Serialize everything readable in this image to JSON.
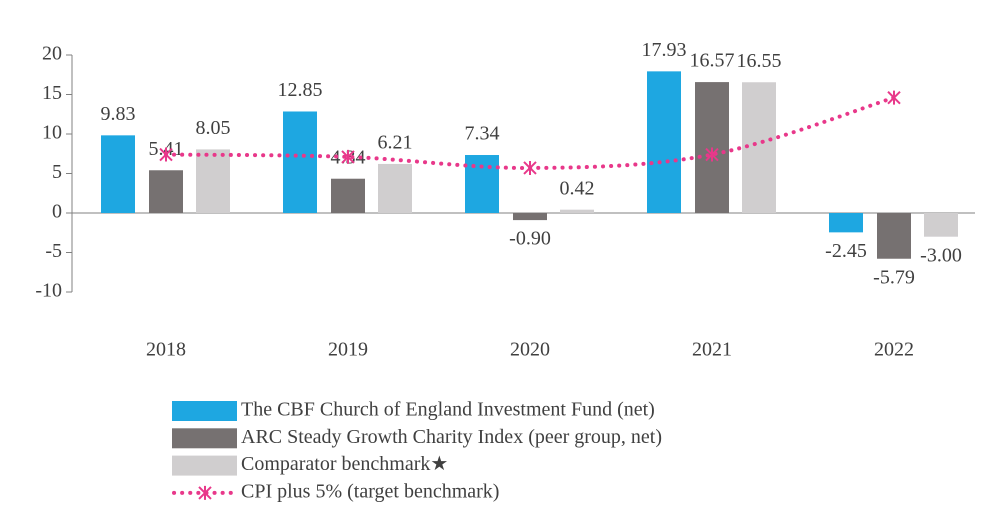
{
  "chart_data": {
    "type": "bar",
    "categories": [
      "2018",
      "2019",
      "2020",
      "2021",
      "2022"
    ],
    "ylim": [
      -10,
      20
    ],
    "yticks": [
      -10,
      -5,
      0,
      5,
      10,
      15,
      20
    ],
    "series": [
      {
        "name": "The CBF Church of England Investment Fund (net)",
        "color": "#1ea7e1",
        "values": [
          9.83,
          12.85,
          7.34,
          17.93,
          -2.45
        ],
        "value_labels": [
          "9.83",
          "12.85",
          "7.34",
          "17.93",
          "-2.45"
        ]
      },
      {
        "name": "ARC Steady Growth Charity Index (peer group, net)",
        "color": "#767171",
        "values": [
          5.41,
          4.34,
          -0.9,
          16.57,
          -5.79
        ],
        "value_labels": [
          "5.41",
          "4.34",
          "-0.90",
          "16.57",
          "-5.79"
        ]
      },
      {
        "name": "Comparator benchmark★",
        "color": "#d0cecf",
        "values": [
          8.05,
          6.21,
          0.42,
          16.55,
          -3.0
        ],
        "value_labels": [
          "8.05",
          "6.21",
          "0.42",
          "16.55",
          "-3.00"
        ]
      },
      {
        "name": "CPI plus 5% (target benchmark)",
        "color": "#e8388a",
        "type": "line",
        "values": [
          7.4,
          7.1,
          5.7,
          7.4,
          14.6
        ]
      }
    ]
  }
}
